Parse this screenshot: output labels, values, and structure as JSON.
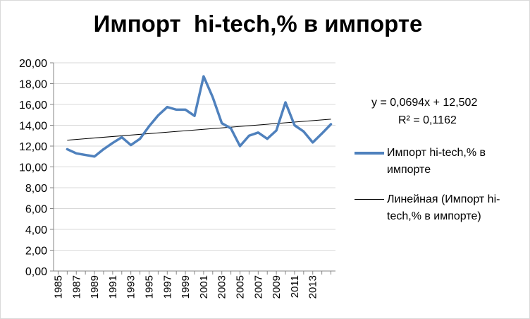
{
  "chart_data": {
    "type": "line",
    "title": "Импорт  hi-tech,% в импорте",
    "xlabel": "",
    "ylabel": "",
    "ylim": [
      0,
      20
    ],
    "ytick_labels": [
      "0,00",
      "2,00",
      "4,00",
      "6,00",
      "8,00",
      "10,00",
      "12,00",
      "14,00",
      "16,00",
      "18,00",
      "20,00"
    ],
    "ytick_values": [
      0,
      2,
      4,
      6,
      8,
      10,
      12,
      14,
      16,
      18,
      20
    ],
    "x": [
      1985,
      1986,
      1987,
      1988,
      1989,
      1990,
      1991,
      1992,
      1993,
      1994,
      1995,
      1996,
      1997,
      1998,
      1999,
      2000,
      2001,
      2002,
      2003,
      2004,
      2005,
      2006,
      2007,
      2008,
      2009,
      2010,
      2011,
      2012,
      2013,
      2014,
      2015
    ],
    "xtick_labels": [
      "1985",
      "1987",
      "1989",
      "1991",
      "1993",
      "1995",
      "1997",
      "1999",
      "2001",
      "2003",
      "2005",
      "2007",
      "2009",
      "2011",
      "2013"
    ],
    "series": [
      {
        "name": "Импорт  hi-tech,% в импорте",
        "color": "#4f81bd",
        "x": [
          1986,
          1987,
          1988,
          1989,
          1990,
          1991,
          1992,
          1993,
          1994,
          1995,
          1996,
          1997,
          1998,
          1999,
          2000,
          2001,
          2002,
          2003,
          2004,
          2005,
          2006,
          2007,
          2008,
          2009,
          2010,
          2011,
          2012,
          2013,
          2014,
          2015
        ],
        "values": [
          11.7,
          11.3,
          11.15,
          11.0,
          11.7,
          12.3,
          12.85,
          12.1,
          12.7,
          13.9,
          14.95,
          15.75,
          15.5,
          15.5,
          14.9,
          18.7,
          16.7,
          14.2,
          13.7,
          12.0,
          13.0,
          13.3,
          12.7,
          13.5,
          16.2,
          14.0,
          13.4,
          12.35,
          13.2,
          14.1
        ]
      }
    ],
    "trendline": {
      "name": "Линейная (Импорт  hi-tech,% в импорте)",
      "color": "#000000",
      "slope": 0.0694,
      "intercept": 12.502,
      "equation": "y = 0,0694x + 12,502",
      "r2": "R² = 0,1162"
    },
    "grid": true,
    "legend_position": "right"
  }
}
